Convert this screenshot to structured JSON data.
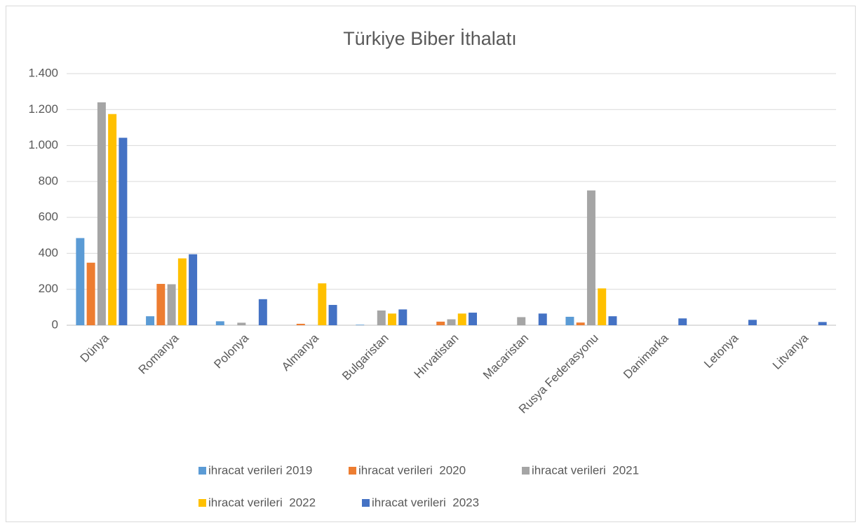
{
  "chart_data": {
    "type": "bar",
    "title": "Türkiye Biber İthalatı",
    "categories": [
      "Dünya",
      "Romanya",
      "Polonya",
      "Almanya",
      "Bulgaristan",
      "Hırvatistan",
      "Macaristan",
      "Rusya Federasyonu",
      "Danimarka",
      "Letonya",
      "Litvanya"
    ],
    "series": [
      {
        "name": "ihracat verileri 2019",
        "color": "#5b9bd5",
        "values": [
          485,
          50,
          22,
          0,
          3,
          0,
          0,
          47,
          0,
          0,
          0
        ]
      },
      {
        "name": "ihracat verileri  2020",
        "color": "#ed7d31",
        "values": [
          348,
          230,
          0,
          8,
          0,
          20,
          0,
          15,
          0,
          0,
          0
        ]
      },
      {
        "name": "ihracat verileri  2021",
        "color": "#a5a5a5",
        "values": [
          1240,
          228,
          14,
          0,
          82,
          33,
          45,
          750,
          0,
          0,
          0
        ]
      },
      {
        "name": "ihracat verileri  2022",
        "color": "#ffc000",
        "values": [
          1175,
          372,
          0,
          233,
          65,
          65,
          0,
          205,
          0,
          0,
          0
        ]
      },
      {
        "name": "ihracat verileri  2023",
        "color": "#4472c4",
        "values": [
          1043,
          395,
          145,
          113,
          88,
          70,
          65,
          50,
          38,
          30,
          18
        ]
      }
    ],
    "ylim": [
      0,
      1400
    ],
    "yticks": [
      0,
      200,
      400,
      600,
      800,
      {
        "value": 1000,
        "label": "1.000"
      },
      {
        "value": 1200,
        "label": "1.200"
      },
      {
        "value": 1400,
        "label": "1.400"
      }
    ],
    "grid": true,
    "legend": "bottom"
  }
}
